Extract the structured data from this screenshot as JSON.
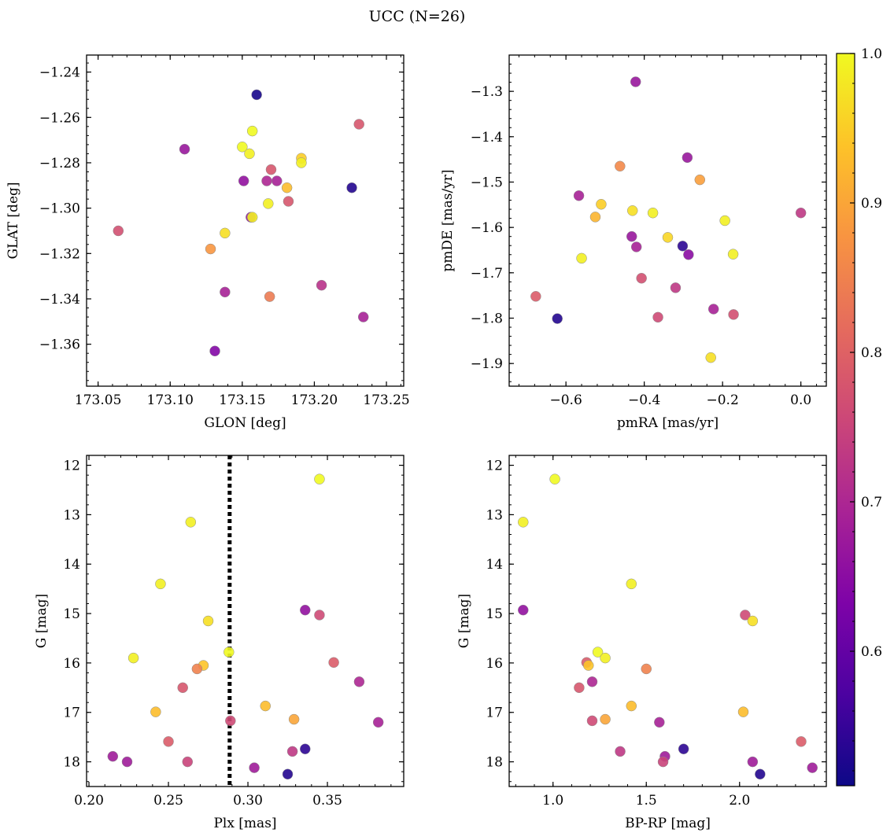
{
  "figure": {
    "title": "UCC (N=26)",
    "colorbar": {
      "colormap": "plasma",
      "range": [
        0.51,
        1.0
      ],
      "ticks": [
        0.6,
        0.7,
        0.8,
        0.9,
        1.0
      ],
      "tick_labels": [
        "0.6",
        "0.7",
        "0.8",
        "0.9",
        "1.0"
      ]
    }
  },
  "chart_data": [
    {
      "type": "scatter",
      "panel": "top-left",
      "xlabel": "GLON [deg]",
      "ylabel": "GLAT [deg]",
      "xlim": [
        173.042,
        173.262
      ],
      "ylim": [
        -1.3785,
        -1.2325
      ],
      "y_inverted": false,
      "xticks": [
        173.05,
        173.1,
        173.15,
        173.2,
        173.25
      ],
      "xtick_labels": [
        "173.05",
        "173.10",
        "173.15",
        "173.20",
        "173.25"
      ],
      "yticks": [
        -1.36,
        -1.34,
        -1.32,
        -1.3,
        -1.28,
        -1.26,
        -1.24
      ],
      "ytick_labels": [
        "−1.36",
        "−1.34",
        "−1.32",
        "−1.30",
        "−1.28",
        "−1.26",
        "−1.24"
      ],
      "points": [
        {
          "x": 173.16,
          "y": -1.25,
          "c": 0.52
        },
        {
          "x": 173.231,
          "y": -1.263,
          "c": 0.78
        },
        {
          "x": 173.157,
          "y": -1.266,
          "c": 1.0
        },
        {
          "x": 173.15,
          "y": -1.273,
          "c": 1.0
        },
        {
          "x": 173.11,
          "y": -1.274,
          "c": 0.67
        },
        {
          "x": 173.155,
          "y": -1.276,
          "c": 0.99
        },
        {
          "x": 173.191,
          "y": -1.278,
          "c": 0.95
        },
        {
          "x": 173.191,
          "y": -1.28,
          "c": 0.99
        },
        {
          "x": 173.17,
          "y": -1.283,
          "c": 0.78
        },
        {
          "x": 173.151,
          "y": -1.288,
          "c": 0.66
        },
        {
          "x": 173.167,
          "y": -1.288,
          "c": 0.7
        },
        {
          "x": 173.174,
          "y": -1.288,
          "c": 0.69
        },
        {
          "x": 173.181,
          "y": -1.291,
          "c": 0.93
        },
        {
          "x": 173.226,
          "y": -1.291,
          "c": 0.53
        },
        {
          "x": 173.182,
          "y": -1.297,
          "c": 0.78
        },
        {
          "x": 173.168,
          "y": -1.298,
          "c": 0.99
        },
        {
          "x": 173.064,
          "y": -1.31,
          "c": 0.77
        },
        {
          "x": 173.138,
          "y": -1.311,
          "c": 0.97
        },
        {
          "x": 173.156,
          "y": -1.304,
          "c": 0.67
        },
        {
          "x": 173.157,
          "y": -1.304,
          "c": 0.99
        },
        {
          "x": 173.128,
          "y": -1.318,
          "c": 0.88
        },
        {
          "x": 173.205,
          "y": -1.334,
          "c": 0.72
        },
        {
          "x": 173.138,
          "y": -1.337,
          "c": 0.69
        },
        {
          "x": 173.169,
          "y": -1.339,
          "c": 0.84
        },
        {
          "x": 173.234,
          "y": -1.348,
          "c": 0.69
        },
        {
          "x": 173.131,
          "y": -1.363,
          "c": 0.64
        }
      ]
    },
    {
      "type": "scatter",
      "panel": "top-right",
      "xlabel": "pmRA [mas/yr]",
      "ylabel": "pmDE [mas/yr]",
      "xlim": [
        -0.745,
        0.065
      ],
      "ylim": [
        -1.95,
        -1.22
      ],
      "y_inverted": false,
      "xticks": [
        -0.6,
        -0.4,
        -0.2,
        0.0
      ],
      "xtick_labels": [
        "−0.6",
        "−0.4",
        "−0.2",
        "0.0"
      ],
      "yticks": [
        -1.9,
        -1.8,
        -1.7,
        -1.6,
        -1.5,
        -1.4,
        -1.3
      ],
      "ytick_labels": [
        "−1.9",
        "−1.8",
        "−1.7",
        "−1.6",
        "−1.5",
        "−1.4",
        "−1.3"
      ],
      "points": [
        {
          "x": -0.422,
          "y": -1.279,
          "c": 0.67
        },
        {
          "x": -0.29,
          "y": -1.446,
          "c": 0.67
        },
        {
          "x": -0.462,
          "y": -1.465,
          "c": 0.86
        },
        {
          "x": -0.258,
          "y": -1.495,
          "c": 0.89
        },
        {
          "x": -0.567,
          "y": -1.53,
          "c": 0.69
        },
        {
          "x": -0.51,
          "y": -1.549,
          "c": 0.95
        },
        {
          "x": -0.43,
          "y": -1.563,
          "c": 0.97
        },
        {
          "x": -0.378,
          "y": -1.568,
          "c": 0.99
        },
        {
          "x": 0.0,
          "y": -1.568,
          "c": 0.73
        },
        {
          "x": -0.525,
          "y": -1.577,
          "c": 0.92
        },
        {
          "x": -0.194,
          "y": -1.585,
          "c": 0.99
        },
        {
          "x": -0.34,
          "y": -1.622,
          "c": 0.96
        },
        {
          "x": -0.432,
          "y": -1.62,
          "c": 0.67
        },
        {
          "x": -0.302,
          "y": -1.641,
          "c": 0.54
        },
        {
          "x": -0.42,
          "y": -1.643,
          "c": 0.69
        },
        {
          "x": -0.287,
          "y": -1.66,
          "c": 0.65
        },
        {
          "x": -0.173,
          "y": -1.659,
          "c": 0.99
        },
        {
          "x": -0.56,
          "y": -1.668,
          "c": 0.99
        },
        {
          "x": -0.407,
          "y": -1.712,
          "c": 0.77
        },
        {
          "x": -0.32,
          "y": -1.733,
          "c": 0.73
        },
        {
          "x": -0.677,
          "y": -1.752,
          "c": 0.79
        },
        {
          "x": -0.223,
          "y": -1.78,
          "c": 0.69
        },
        {
          "x": -0.172,
          "y": -1.792,
          "c": 0.77
        },
        {
          "x": -0.365,
          "y": -1.798,
          "c": 0.76
        },
        {
          "x": -0.622,
          "y": -1.801,
          "c": 0.53
        },
        {
          "x": -0.23,
          "y": -1.887,
          "c": 0.97
        }
      ]
    },
    {
      "type": "scatter",
      "panel": "bottom-left",
      "xlabel": "Plx [mas]",
      "ylabel": "G [mag]",
      "xlim": [
        0.1985,
        0.398
      ],
      "ylim": [
        18.5,
        11.8
      ],
      "y_inverted": true,
      "xticks": [
        0.2,
        0.25,
        0.3,
        0.35
      ],
      "xtick_labels": [
        "0.20",
        "0.25",
        "0.30",
        "0.35"
      ],
      "yticks": [
        12,
        13,
        14,
        15,
        16,
        17,
        18
      ],
      "ytick_labels": [
        "12",
        "13",
        "14",
        "15",
        "16",
        "17",
        "18"
      ],
      "vline": {
        "x": 0.2885,
        "style": "dotted"
      },
      "points": [
        {
          "x": 0.345,
          "y": 12.28,
          "c": 1.0
        },
        {
          "x": 0.264,
          "y": 13.15,
          "c": 0.99
        },
        {
          "x": 0.245,
          "y": 14.4,
          "c": 0.99
        },
        {
          "x": 0.336,
          "y": 14.93,
          "c": 0.66
        },
        {
          "x": 0.345,
          "y": 15.03,
          "c": 0.76
        },
        {
          "x": 0.275,
          "y": 15.15,
          "c": 0.97
        },
        {
          "x": 0.288,
          "y": 15.78,
          "c": 1.0
        },
        {
          "x": 0.228,
          "y": 15.9,
          "c": 0.99
        },
        {
          "x": 0.354,
          "y": 15.99,
          "c": 0.79
        },
        {
          "x": 0.272,
          "y": 16.05,
          "c": 0.94
        },
        {
          "x": 0.268,
          "y": 16.12,
          "c": 0.85
        },
        {
          "x": 0.37,
          "y": 16.38,
          "c": 0.7
        },
        {
          "x": 0.259,
          "y": 16.5,
          "c": 0.78
        },
        {
          "x": 0.311,
          "y": 16.87,
          "c": 0.93
        },
        {
          "x": 0.242,
          "y": 16.99,
          "c": 0.93
        },
        {
          "x": 0.329,
          "y": 17.14,
          "c": 0.9
        },
        {
          "x": 0.289,
          "y": 17.17,
          "c": 0.76
        },
        {
          "x": 0.382,
          "y": 17.2,
          "c": 0.69
        },
        {
          "x": 0.25,
          "y": 17.59,
          "c": 0.79
        },
        {
          "x": 0.336,
          "y": 17.74,
          "c": 0.54
        },
        {
          "x": 0.328,
          "y": 17.79,
          "c": 0.73
        },
        {
          "x": 0.215,
          "y": 17.89,
          "c": 0.68
        },
        {
          "x": 0.224,
          "y": 18.0,
          "c": 0.68
        },
        {
          "x": 0.262,
          "y": 18.0,
          "c": 0.75
        },
        {
          "x": 0.304,
          "y": 18.12,
          "c": 0.68
        },
        {
          "x": 0.325,
          "y": 18.25,
          "c": 0.53
        }
      ]
    },
    {
      "type": "scatter",
      "panel": "bottom-right",
      "xlabel": "BP-RP [mag]",
      "ylabel": "G [mag]",
      "xlim": [
        0.765,
        2.465
      ],
      "ylim": [
        18.5,
        11.8
      ],
      "y_inverted": true,
      "xticks": [
        1.0,
        1.5,
        2.0
      ],
      "xtick_labels": [
        "1.0",
        "1.5",
        "2.0"
      ],
      "yticks": [
        12,
        13,
        14,
        15,
        16,
        17,
        18
      ],
      "ytick_labels": [
        "12",
        "13",
        "14",
        "15",
        "16",
        "17",
        "18"
      ],
      "points": [
        {
          "x": 1.01,
          "y": 12.28,
          "c": 1.0
        },
        {
          "x": 0.84,
          "y": 13.15,
          "c": 0.99
        },
        {
          "x": 1.42,
          "y": 14.4,
          "c": 0.99
        },
        {
          "x": 0.84,
          "y": 14.93,
          "c": 0.66
        },
        {
          "x": 2.03,
          "y": 15.03,
          "c": 0.76
        },
        {
          "x": 2.07,
          "y": 15.15,
          "c": 0.97
        },
        {
          "x": 1.24,
          "y": 15.78,
          "c": 1.0
        },
        {
          "x": 1.28,
          "y": 15.9,
          "c": 0.99
        },
        {
          "x": 1.18,
          "y": 15.99,
          "c": 0.79
        },
        {
          "x": 1.19,
          "y": 16.05,
          "c": 0.94
        },
        {
          "x": 1.5,
          "y": 16.12,
          "c": 0.85
        },
        {
          "x": 1.21,
          "y": 16.38,
          "c": 0.7
        },
        {
          "x": 1.14,
          "y": 16.5,
          "c": 0.78
        },
        {
          "x": 1.42,
          "y": 16.87,
          "c": 0.93
        },
        {
          "x": 2.02,
          "y": 16.99,
          "c": 0.93
        },
        {
          "x": 1.28,
          "y": 17.14,
          "c": 0.9
        },
        {
          "x": 1.21,
          "y": 17.17,
          "c": 0.76
        },
        {
          "x": 1.57,
          "y": 17.2,
          "c": 0.69
        },
        {
          "x": 2.33,
          "y": 17.59,
          "c": 0.79
        },
        {
          "x": 1.7,
          "y": 17.74,
          "c": 0.54
        },
        {
          "x": 1.36,
          "y": 17.79,
          "c": 0.73
        },
        {
          "x": 1.6,
          "y": 17.89,
          "c": 0.68
        },
        {
          "x": 1.59,
          "y": 18.0,
          "c": 0.75
        },
        {
          "x": 2.07,
          "y": 18.0,
          "c": 0.68
        },
        {
          "x": 2.39,
          "y": 18.12,
          "c": 0.68
        },
        {
          "x": 2.11,
          "y": 18.25,
          "c": 0.53
        }
      ]
    }
  ]
}
